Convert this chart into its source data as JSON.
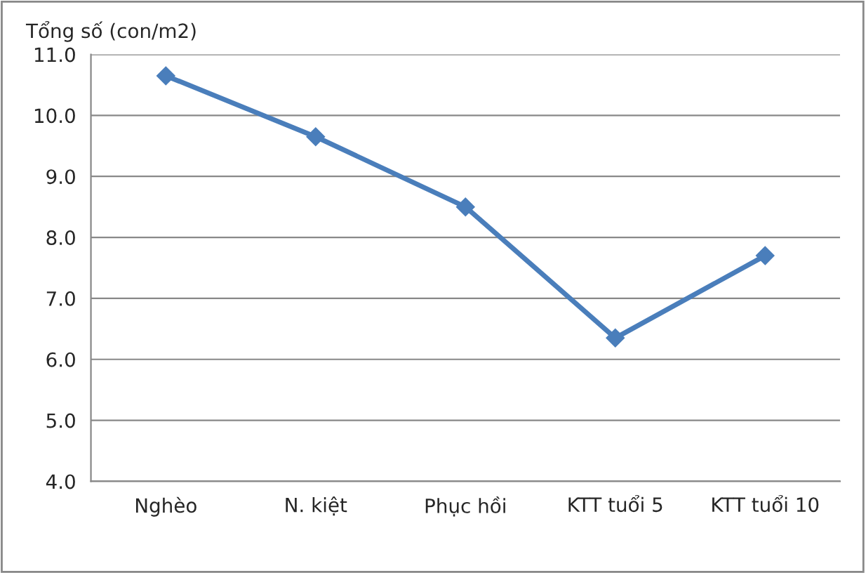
{
  "chart_data": {
    "type": "line",
    "ylabel": "Tổng số (con/m2)",
    "categories": [
      "Nghèo",
      "N. kiệt",
      "Phục hồi",
      "KTT tuổi 5",
      "KTT tuổi 10"
    ],
    "series": [
      {
        "color": "#4a7ebb",
        "values": [
          10.65,
          9.65,
          8.5,
          6.35,
          7.7
        ]
      }
    ],
    "ylim": [
      4,
      11
    ],
    "yticks": [
      {
        "value": 4,
        "label": "4.0"
      },
      {
        "value": 5,
        "label": "5.0"
      },
      {
        "value": 6,
        "label": "6.0"
      },
      {
        "value": 7,
        "label": "7.0"
      },
      {
        "value": 8,
        "label": "8.0"
      },
      {
        "value": 9,
        "label": "9.0"
      },
      {
        "value": 10,
        "label": "10.0"
      },
      {
        "value": 11,
        "label": "11.0"
      }
    ],
    "grid": "y",
    "marker": "diamond",
    "line_style": "solid",
    "legend": false
  }
}
